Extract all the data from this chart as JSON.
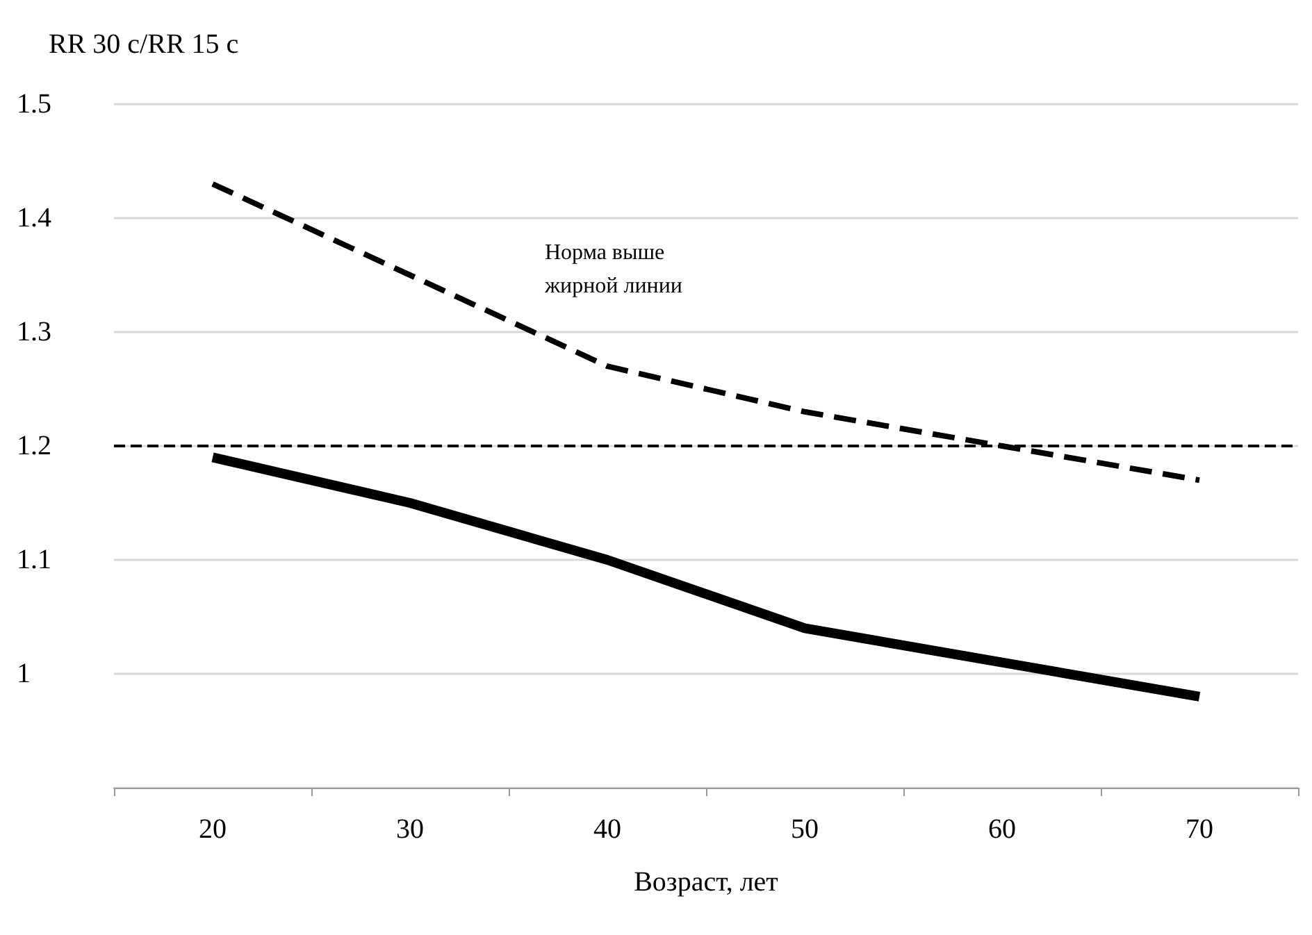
{
  "chart_data": {
    "type": "line",
    "ylabel": "RR 30 с/RR 15 с",
    "xlabel": "Возраст, лет",
    "categories": [
      "20",
      "30",
      "40",
      "50",
      "60",
      "70"
    ],
    "series": [
      {
        "color": "#000000",
        "line_style": "dashed",
        "values": [
          1.43,
          1.35,
          1.27,
          1.23,
          1.2,
          1.17
        ]
      },
      {
        "color": "#000000",
        "line_style": "solid",
        "values": [
          1.19,
          1.15,
          1.1,
          1.04,
          1.01,
          0.98
        ]
      }
    ],
    "ylim": [
      0.9,
      1.5
    ],
    "yticks": [
      {
        "value": 0.9,
        "label": null
      },
      1,
      1.1,
      1.2,
      1.3,
      1.4,
      1.5
    ],
    "grid": "y",
    "marker": "none",
    "ref_lines": [
      {
        "axis": "y",
        "value": 1.2,
        "label": null,
        "color": "#000000",
        "line_style": "dashed"
      }
    ],
    "annotations": [
      "Норма выше жирной линии"
    ]
  }
}
